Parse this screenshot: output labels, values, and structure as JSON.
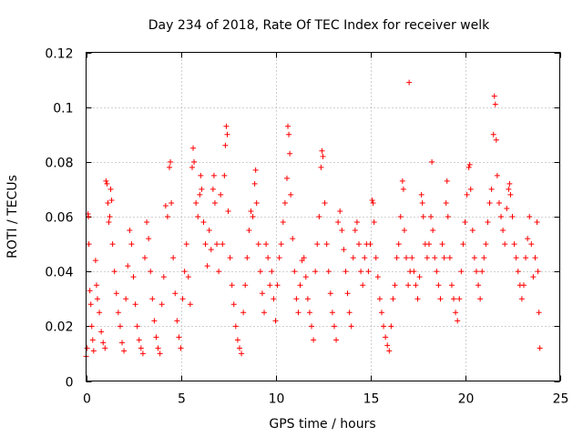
{
  "chart_data": {
    "type": "scatter",
    "title": "Day 234 of 2018, Rate Of TEC Index for receiver welk",
    "xlabel": "GPS time / hours",
    "ylabel": "ROTI / TECUs",
    "xlim": [
      0,
      25
    ],
    "ylim": [
      0,
      0.12
    ],
    "xticks": [
      0,
      5,
      10,
      15,
      20,
      25
    ],
    "xtick_labels": [
      "0",
      "5",
      "10",
      "15",
      "20",
      "25"
    ],
    "yticks": [
      0,
      0.02,
      0.04,
      0.06,
      0.08,
      0.1,
      0.12
    ],
    "ytick_labels": [
      "0",
      "0.02",
      "0.04",
      "0.06",
      "0.08",
      "0.1",
      "0.12"
    ],
    "grid": true,
    "marker": "plus",
    "color": "#ff0000",
    "series": [
      {
        "name": "ROTI",
        "points": [
          [
            0.0,
            0.009
          ],
          [
            0.05,
            0.012
          ],
          [
            0.1,
            0.061
          ],
          [
            0.12,
            0.06
          ],
          [
            0.15,
            0.05
          ],
          [
            0.2,
            0.033
          ],
          [
            0.25,
            0.028
          ],
          [
            0.3,
            0.02
          ],
          [
            0.35,
            0.015
          ],
          [
            0.4,
            0.011
          ],
          [
            0.5,
            0.044
          ],
          [
            0.55,
            0.035
          ],
          [
            0.6,
            0.03
          ],
          [
            0.7,
            0.025
          ],
          [
            0.8,
            0.018
          ],
          [
            0.9,
            0.014
          ],
          [
            1.0,
            0.012
          ],
          [
            1.05,
            0.073
          ],
          [
            1.1,
            0.072
          ],
          [
            1.15,
            0.065
          ],
          [
            1.2,
            0.058
          ],
          [
            1.25,
            0.06
          ],
          [
            1.3,
            0.07
          ],
          [
            1.35,
            0.066
          ],
          [
            1.4,
            0.05
          ],
          [
            1.5,
            0.04
          ],
          [
            1.6,
            0.032
          ],
          [
            1.7,
            0.025
          ],
          [
            1.8,
            0.02
          ],
          [
            1.9,
            0.014
          ],
          [
            2.0,
            0.011
          ],
          [
            2.1,
            0.03
          ],
          [
            2.2,
            0.042
          ],
          [
            2.3,
            0.055
          ],
          [
            2.4,
            0.05
          ],
          [
            2.5,
            0.038
          ],
          [
            2.6,
            0.028
          ],
          [
            2.7,
            0.02
          ],
          [
            2.8,
            0.015
          ],
          [
            2.9,
            0.012
          ],
          [
            3.0,
            0.01
          ],
          [
            3.1,
            0.045
          ],
          [
            3.2,
            0.058
          ],
          [
            3.3,
            0.052
          ],
          [
            3.4,
            0.04
          ],
          [
            3.5,
            0.03
          ],
          [
            3.6,
            0.022
          ],
          [
            3.7,
            0.016
          ],
          [
            3.8,
            0.012
          ],
          [
            3.9,
            0.01
          ],
          [
            4.0,
            0.028
          ],
          [
            4.1,
            0.038
          ],
          [
            4.2,
            0.064
          ],
          [
            4.3,
            0.06
          ],
          [
            4.4,
            0.078
          ],
          [
            4.45,
            0.08
          ],
          [
            4.5,
            0.065
          ],
          [
            4.6,
            0.045
          ],
          [
            4.7,
            0.032
          ],
          [
            4.8,
            0.022
          ],
          [
            4.9,
            0.016
          ],
          [
            5.0,
            0.012
          ],
          [
            5.1,
            0.03
          ],
          [
            5.2,
            0.04
          ],
          [
            5.3,
            0.05
          ],
          [
            5.4,
            0.038
          ],
          [
            5.5,
            0.028
          ],
          [
            5.6,
            0.078
          ],
          [
            5.65,
            0.085
          ],
          [
            5.7,
            0.08
          ],
          [
            5.8,
            0.065
          ],
          [
            5.9,
            0.06
          ],
          [
            6.0,
            0.068
          ],
          [
            6.05,
            0.075
          ],
          [
            6.1,
            0.07
          ],
          [
            6.2,
            0.058
          ],
          [
            6.3,
            0.05
          ],
          [
            6.4,
            0.042
          ],
          [
            6.5,
            0.055
          ],
          [
            6.6,
            0.048
          ],
          [
            6.7,
            0.07
          ],
          [
            6.75,
            0.075
          ],
          [
            6.8,
            0.065
          ],
          [
            6.9,
            0.05
          ],
          [
            7.0,
            0.04
          ],
          [
            7.1,
            0.068
          ],
          [
            7.2,
            0.05
          ],
          [
            7.3,
            0.075
          ],
          [
            7.35,
            0.086
          ],
          [
            7.4,
            0.093
          ],
          [
            7.45,
            0.09
          ],
          [
            7.5,
            0.062
          ],
          [
            7.6,
            0.045
          ],
          [
            7.7,
            0.035
          ],
          [
            7.8,
            0.028
          ],
          [
            7.9,
            0.02
          ],
          [
            8.0,
            0.015
          ],
          [
            8.1,
            0.012
          ],
          [
            8.2,
            0.01
          ],
          [
            8.3,
            0.025
          ],
          [
            8.4,
            0.035
          ],
          [
            8.5,
            0.045
          ],
          [
            8.6,
            0.055
          ],
          [
            8.7,
            0.062
          ],
          [
            8.8,
            0.06
          ],
          [
            8.9,
            0.072
          ],
          [
            8.95,
            0.077
          ],
          [
            9.0,
            0.065
          ],
          [
            9.1,
            0.05
          ],
          [
            9.2,
            0.04
          ],
          [
            9.3,
            0.032
          ],
          [
            9.4,
            0.025
          ],
          [
            9.5,
            0.05
          ],
          [
            9.6,
            0.045
          ],
          [
            9.7,
            0.035
          ],
          [
            9.8,
            0.04
          ],
          [
            9.9,
            0.03
          ],
          [
            10.0,
            0.022
          ],
          [
            10.1,
            0.035
          ],
          [
            10.2,
            0.045
          ],
          [
            10.3,
            0.05
          ],
          [
            10.4,
            0.058
          ],
          [
            10.5,
            0.065
          ],
          [
            10.6,
            0.074
          ],
          [
            10.65,
            0.093
          ],
          [
            10.7,
            0.09
          ],
          [
            10.75,
            0.083
          ],
          [
            10.8,
            0.068
          ],
          [
            10.9,
            0.052
          ],
          [
            11.0,
            0.04
          ],
          [
            11.1,
            0.03
          ],
          [
            11.2,
            0.025
          ],
          [
            11.3,
            0.035
          ],
          [
            11.4,
            0.044
          ],
          [
            11.5,
            0.045
          ],
          [
            11.6,
            0.038
          ],
          [
            11.7,
            0.03
          ],
          [
            11.8,
            0.025
          ],
          [
            11.9,
            0.02
          ],
          [
            12.0,
            0.015
          ],
          [
            12.1,
            0.04
          ],
          [
            12.2,
            0.05
          ],
          [
            12.3,
            0.06
          ],
          [
            12.4,
            0.078
          ],
          [
            12.45,
            0.084
          ],
          [
            12.5,
            0.082
          ],
          [
            12.6,
            0.065
          ],
          [
            12.7,
            0.05
          ],
          [
            12.8,
            0.04
          ],
          [
            12.9,
            0.032
          ],
          [
            13.0,
            0.025
          ],
          [
            13.1,
            0.02
          ],
          [
            13.2,
            0.015
          ],
          [
            13.3,
            0.058
          ],
          [
            13.4,
            0.062
          ],
          [
            13.5,
            0.055
          ],
          [
            13.6,
            0.048
          ],
          [
            13.7,
            0.04
          ],
          [
            13.8,
            0.032
          ],
          [
            13.9,
            0.025
          ],
          [
            14.0,
            0.02
          ],
          [
            14.1,
            0.045
          ],
          [
            14.2,
            0.055
          ],
          [
            14.3,
            0.058
          ],
          [
            14.4,
            0.05
          ],
          [
            14.5,
            0.04
          ],
          [
            14.6,
            0.035
          ],
          [
            14.7,
            0.045
          ],
          [
            14.8,
            0.05
          ],
          [
            14.9,
            0.04
          ],
          [
            15.0,
            0.05
          ],
          [
            15.1,
            0.066
          ],
          [
            15.15,
            0.065
          ],
          [
            15.2,
            0.058
          ],
          [
            15.3,
            0.045
          ],
          [
            15.4,
            0.038
          ],
          [
            15.5,
            0.03
          ],
          [
            15.6,
            0.025
          ],
          [
            15.7,
            0.02
          ],
          [
            15.8,
            0.016
          ],
          [
            15.9,
            0.013
          ],
          [
            16.0,
            0.011
          ],
          [
            16.1,
            0.02
          ],
          [
            16.2,
            0.03
          ],
          [
            16.3,
            0.035
          ],
          [
            16.4,
            0.045
          ],
          [
            16.5,
            0.05
          ],
          [
            16.6,
            0.06
          ],
          [
            16.7,
            0.073
          ],
          [
            16.75,
            0.07
          ],
          [
            16.8,
            0.055
          ],
          [
            16.9,
            0.045
          ],
          [
            17.0,
            0.035
          ],
          [
            17.05,
            0.109
          ],
          [
            17.1,
            0.04
          ],
          [
            17.2,
            0.045
          ],
          [
            17.3,
            0.04
          ],
          [
            17.4,
            0.035
          ],
          [
            17.5,
            0.03
          ],
          [
            17.6,
            0.038
          ],
          [
            17.7,
            0.068
          ],
          [
            17.75,
            0.065
          ],
          [
            17.8,
            0.06
          ],
          [
            17.9,
            0.05
          ],
          [
            18.0,
            0.045
          ],
          [
            18.1,
            0.05
          ],
          [
            18.2,
            0.06
          ],
          [
            18.25,
            0.08
          ],
          [
            18.3,
            0.055
          ],
          [
            18.4,
            0.045
          ],
          [
            18.5,
            0.04
          ],
          [
            18.6,
            0.035
          ],
          [
            18.7,
            0.03
          ],
          [
            18.8,
            0.05
          ],
          [
            18.9,
            0.045
          ],
          [
            19.0,
            0.065
          ],
          [
            19.05,
            0.073
          ],
          [
            19.1,
            0.06
          ],
          [
            19.2,
            0.045
          ],
          [
            19.3,
            0.035
          ],
          [
            19.4,
            0.03
          ],
          [
            19.5,
            0.025
          ],
          [
            19.6,
            0.022
          ],
          [
            19.7,
            0.03
          ],
          [
            19.8,
            0.04
          ],
          [
            19.9,
            0.05
          ],
          [
            20.0,
            0.058
          ],
          [
            20.1,
            0.068
          ],
          [
            20.2,
            0.078
          ],
          [
            20.25,
            0.079
          ],
          [
            20.3,
            0.07
          ],
          [
            20.4,
            0.055
          ],
          [
            20.5,
            0.045
          ],
          [
            20.6,
            0.04
          ],
          [
            20.7,
            0.035
          ],
          [
            20.8,
            0.03
          ],
          [
            20.9,
            0.04
          ],
          [
            21.0,
            0.045
          ],
          [
            21.1,
            0.05
          ],
          [
            21.2,
            0.058
          ],
          [
            21.3,
            0.065
          ],
          [
            21.4,
            0.07
          ],
          [
            21.5,
            0.09
          ],
          [
            21.55,
            0.104
          ],
          [
            21.6,
            0.101
          ],
          [
            21.65,
            0.088
          ],
          [
            21.7,
            0.075
          ],
          [
            21.8,
            0.065
          ],
          [
            21.9,
            0.06
          ],
          [
            22.0,
            0.055
          ],
          [
            22.1,
            0.05
          ],
          [
            22.2,
            0.063
          ],
          [
            22.3,
            0.07
          ],
          [
            22.35,
            0.072
          ],
          [
            22.4,
            0.068
          ],
          [
            22.5,
            0.06
          ],
          [
            22.6,
            0.05
          ],
          [
            22.7,
            0.045
          ],
          [
            22.8,
            0.04
          ],
          [
            22.9,
            0.035
          ],
          [
            23.0,
            0.03
          ],
          [
            23.1,
            0.035
          ],
          [
            23.2,
            0.045
          ],
          [
            23.3,
            0.052
          ],
          [
            23.4,
            0.06
          ],
          [
            23.5,
            0.05
          ],
          [
            23.6,
            0.038
          ],
          [
            23.7,
            0.045
          ],
          [
            23.8,
            0.058
          ],
          [
            23.85,
            0.04
          ],
          [
            23.9,
            0.025
          ],
          [
            23.95,
            0.012
          ]
        ]
      }
    ]
  }
}
